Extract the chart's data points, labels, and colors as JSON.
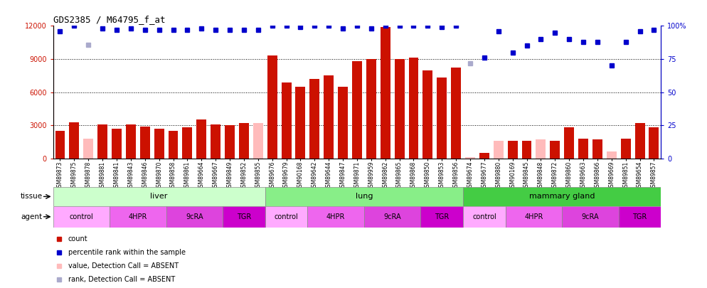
{
  "title": "GDS2385 / M64795_f_at",
  "samples": [
    "GSM89873",
    "GSM89875",
    "GSM89878",
    "GSM89881",
    "GSM89841",
    "GSM89843",
    "GSM89846",
    "GSM89870",
    "GSM89858",
    "GSM89861",
    "GSM89664",
    "GSM89667",
    "GSM89849",
    "GSM89852",
    "GSM89855",
    "GSM89676",
    "GSM89679",
    "GSM90168",
    "GSM89642",
    "GSM89644",
    "GSM89847",
    "GSM89871",
    "GSM89959",
    "GSM89862",
    "GSM89865",
    "GSM89868",
    "GSM89850",
    "GSM89853",
    "GSM89856",
    "GSM89674",
    "GSM89677",
    "GSM89880",
    "GSM90169",
    "GSM89845",
    "GSM89848",
    "GSM89872",
    "GSM89860",
    "GSM89663",
    "GSM89866",
    "GSM89669",
    "GSM89851",
    "GSM89654",
    "GSM89857"
  ],
  "count_values": [
    2500,
    3300,
    1800,
    3100,
    2700,
    3100,
    2900,
    2700,
    2500,
    2800,
    3500,
    3100,
    3000,
    3200,
    3200,
    9300,
    6900,
    6500,
    7200,
    7500,
    6500,
    8800,
    9000,
    11900,
    9000,
    9100,
    8000,
    7300,
    8200,
    100,
    500,
    1600,
    1600,
    1600,
    1700,
    1600,
    2800,
    1800,
    1700,
    600,
    1800,
    3200,
    2800
  ],
  "absent_value": [
    false,
    false,
    true,
    false,
    false,
    false,
    false,
    false,
    false,
    false,
    false,
    false,
    false,
    false,
    false,
    false,
    false,
    false,
    false,
    false,
    false,
    false,
    false,
    false,
    false,
    false,
    false,
    false,
    false,
    false,
    false,
    false,
    false,
    false,
    false,
    false,
    false,
    false,
    false,
    false,
    false,
    false,
    false
  ],
  "absent_value_pink": [
    false,
    false,
    true,
    false,
    false,
    false,
    false,
    false,
    false,
    false,
    false,
    false,
    false,
    false,
    true,
    false,
    false,
    false,
    false,
    false,
    false,
    false,
    false,
    false,
    false,
    false,
    false,
    false,
    false,
    true,
    false,
    true,
    false,
    false,
    true,
    false,
    false,
    false,
    false,
    true,
    false,
    false,
    false
  ],
  "percentile_rank": [
    96,
    100,
    86,
    98,
    97,
    98,
    97,
    97,
    97,
    97,
    98,
    97,
    97,
    97,
    97,
    100,
    100,
    99,
    100,
    100,
    98,
    100,
    98,
    100,
    100,
    100,
    100,
    99,
    100,
    72,
    76,
    96,
    80,
    85,
    90,
    95,
    90,
    88,
    88,
    70,
    88,
    96,
    97
  ],
  "absent_rank": [
    false,
    false,
    true,
    false,
    false,
    false,
    false,
    false,
    false,
    false,
    false,
    false,
    false,
    false,
    false,
    false,
    false,
    false,
    false,
    false,
    false,
    false,
    false,
    false,
    false,
    false,
    false,
    false,
    false,
    true,
    false,
    false,
    false,
    false,
    false,
    false,
    false,
    false,
    false,
    false,
    false,
    false,
    false
  ],
  "tissues": [
    {
      "label": "liver",
      "start": 0,
      "end": 15,
      "color": "#ccffcc"
    },
    {
      "label": "lung",
      "start": 15,
      "end": 29,
      "color": "#88ee88"
    },
    {
      "label": "mammary gland",
      "start": 29,
      "end": 43,
      "color": "#44cc44"
    }
  ],
  "agents": [
    {
      "label": "control",
      "start": 0,
      "end": 4,
      "color": "#ffaaff"
    },
    {
      "label": "4HPR",
      "start": 4,
      "end": 8,
      "color": "#ee66ee"
    },
    {
      "label": "9cRA",
      "start": 8,
      "end": 12,
      "color": "#dd44dd"
    },
    {
      "label": "TGR",
      "start": 12,
      "end": 15,
      "color": "#cc00cc"
    },
    {
      "label": "control",
      "start": 15,
      "end": 18,
      "color": "#ffaaff"
    },
    {
      "label": "4HPR",
      "start": 18,
      "end": 22,
      "color": "#ee66ee"
    },
    {
      "label": "9cRA",
      "start": 22,
      "end": 26,
      "color": "#dd44dd"
    },
    {
      "label": "TGR",
      "start": 26,
      "end": 29,
      "color": "#cc00cc"
    },
    {
      "label": "control",
      "start": 29,
      "end": 32,
      "color": "#ffaaff"
    },
    {
      "label": "4HPR",
      "start": 32,
      "end": 36,
      "color": "#ee66ee"
    },
    {
      "label": "9cRA",
      "start": 36,
      "end": 40,
      "color": "#dd44dd"
    },
    {
      "label": "TGR",
      "start": 40,
      "end": 43,
      "color": "#cc00cc"
    }
  ],
  "bar_color_present": "#cc1100",
  "bar_color_absent": "#ffbbbb",
  "dot_color_present": "#0000cc",
  "dot_color_absent": "#aaaacc",
  "ylim": [
    0,
    12000
  ],
  "y2lim": [
    0,
    100
  ],
  "yticks": [
    0,
    3000,
    6000,
    9000,
    12000
  ],
  "y2ticks": [
    0,
    25,
    50,
    75,
    100
  ],
  "background_color": "#ffffff",
  "label_fontsize": 6,
  "tissue_row_color": "#f0f0f0",
  "agent_row_colors": [
    "#ffaaff",
    "#ee66ee",
    "#dd44dd",
    "#cc00cc"
  ]
}
